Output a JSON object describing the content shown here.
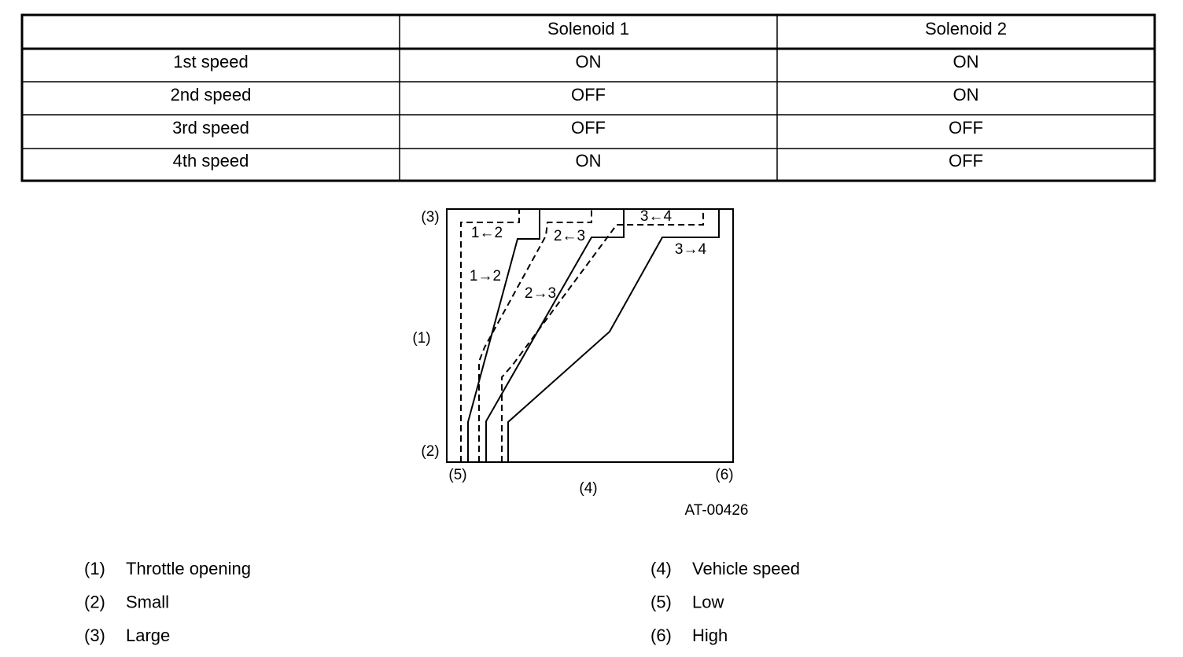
{
  "table": {
    "header": [
      "Solenoid 1",
      "Solenoid 2"
    ],
    "rows": [
      [
        "1st speed",
        "ON",
        "ON"
      ],
      [
        "2nd speed",
        "OFF",
        "ON"
      ],
      [
        "3rd speed",
        "OFF",
        "OFF"
      ],
      [
        "4th speed",
        "ON",
        "OFF"
      ]
    ]
  },
  "diagram": {
    "markers": [
      "(3)",
      "(1)",
      "(2)",
      "(5)",
      "(4)",
      "(6)"
    ],
    "shift_labels": [
      "1←2",
      "2←3",
      "3←4",
      "1→2",
      "2→3",
      "3→4"
    ],
    "code": "AT-00426"
  },
  "legend": [
    {
      "key": "(1)",
      "text": "Throttle opening"
    },
    {
      "key": "(2)",
      "text": "Small"
    },
    {
      "key": "(3)",
      "text": "Large"
    },
    {
      "key": "(4)",
      "text": "Vehicle speed"
    },
    {
      "key": "(5)",
      "text": "Low"
    },
    {
      "key": "(6)",
      "text": "High"
    }
  ]
}
